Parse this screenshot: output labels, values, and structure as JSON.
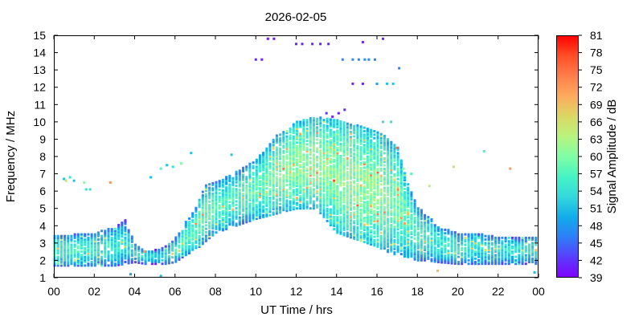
{
  "chart_data": {
    "type": "heatmap",
    "title": "2026-02-05",
    "xlabel": "UT Time / hrs",
    "ylabel": "Frequency / MHz",
    "colorbar_label": "Signal Amplitude / dB",
    "xlim": [
      0,
      24
    ],
    "ylim": [
      1,
      15
    ],
    "xticks": [
      "00",
      "02",
      "04",
      "06",
      "08",
      "10",
      "12",
      "14",
      "16",
      "18",
      "20",
      "22",
      "00"
    ],
    "xtick_values": [
      0,
      2,
      4,
      6,
      8,
      10,
      12,
      14,
      16,
      18,
      20,
      22,
      24
    ],
    "yticks": [
      "1",
      "2",
      "3",
      "4",
      "5",
      "6",
      "7",
      "8",
      "9",
      "10",
      "11",
      "12",
      "13",
      "14",
      "15"
    ],
    "ytick_values": [
      1,
      2,
      3,
      4,
      5,
      6,
      7,
      8,
      9,
      10,
      11,
      12,
      13,
      14,
      15
    ],
    "colorbar": {
      "range": [
        39,
        81
      ],
      "ticks": [
        "81",
        "78",
        "75",
        "72",
        "69",
        "66",
        "63",
        "60",
        "57",
        "54",
        "51",
        "48",
        "45",
        "42",
        "39"
      ],
      "tick_values": [
        81,
        78,
        75,
        72,
        69,
        66,
        63,
        60,
        57,
        54,
        51,
        48,
        45,
        42,
        39
      ],
      "colors": [
        "#8000ff",
        "#5a3cfe",
        "#2e7ef7",
        "#12aceb",
        "#34d8dc",
        "#46f4c4",
        "#80fea6",
        "#b9f37e",
        "#dcd763",
        "#fdaa5e",
        "#ff7e4a",
        "#ff4d26",
        "#ff0000"
      ]
    },
    "envelope": {
      "hours": [
        0,
        1,
        2,
        3,
        3.5,
        4,
        4.5,
        5,
        5.5,
        6,
        6.5,
        7,
        7.5,
        8,
        9,
        10,
        11,
        12,
        13,
        14,
        15,
        16,
        16.5,
        17,
        17.5,
        18,
        18.5,
        19,
        20,
        21,
        22,
        23,
        24
      ],
      "fmin_mhz": [
        1.7,
        1.7,
        1.7,
        1.7,
        1.8,
        1.9,
        1.8,
        1.8,
        1.8,
        1.9,
        2.3,
        2.6,
        3.1,
        3.6,
        4.0,
        4.4,
        4.7,
        5.0,
        5.0,
        3.6,
        3.2,
        2.8,
        2.5,
        2.3,
        2.2,
        2.0,
        2.0,
        1.9,
        1.8,
        1.8,
        1.8,
        1.8,
        1.8
      ],
      "fmax_mhz": [
        3.5,
        3.5,
        3.6,
        3.9,
        4.4,
        3.0,
        2.6,
        2.6,
        2.8,
        3.3,
        4.2,
        5.0,
        6.4,
        6.5,
        7.1,
        7.8,
        9.2,
        10.0,
        10.3,
        10.1,
        9.8,
        9.4,
        9.1,
        8.6,
        6.5,
        5.1,
        4.6,
        4.0,
        3.6,
        3.6,
        3.4,
        3.3,
        3.4
      ],
      "peak_db": [
        56,
        56,
        55,
        55,
        54,
        54,
        53,
        53,
        54,
        55,
        57,
        58,
        58,
        57,
        57,
        58,
        60,
        61,
        61,
        61,
        61,
        61,
        60,
        59,
        58,
        57,
        56,
        55,
        55,
        54,
        54,
        54,
        54
      ]
    },
    "isolated_points": [
      {
        "hour": 10.6,
        "mhz": 14.8,
        "db": 40
      },
      {
        "hour": 10.9,
        "mhz": 14.8,
        "db": 40
      },
      {
        "hour": 10.0,
        "mhz": 13.6,
        "db": 41
      },
      {
        "hour": 10.3,
        "mhz": 13.6,
        "db": 41
      },
      {
        "hour": 12.0,
        "mhz": 14.5,
        "db": 41
      },
      {
        "hour": 12.3,
        "mhz": 14.5,
        "db": 41
      },
      {
        "hour": 12.8,
        "mhz": 14.5,
        "db": 41
      },
      {
        "hour": 13.2,
        "mhz": 14.5,
        "db": 41
      },
      {
        "hour": 13.6,
        "mhz": 14.5,
        "db": 41
      },
      {
        "hour": 15.3,
        "mhz": 14.6,
        "db": 41
      },
      {
        "hour": 16.3,
        "mhz": 14.8,
        "db": 41
      },
      {
        "hour": 14.3,
        "mhz": 13.6,
        "db": 47
      },
      {
        "hour": 14.8,
        "mhz": 13.6,
        "db": 47
      },
      {
        "hour": 15.1,
        "mhz": 13.6,
        "db": 47
      },
      {
        "hour": 15.4,
        "mhz": 13.6,
        "db": 47
      },
      {
        "hour": 15.6,
        "mhz": 13.6,
        "db": 47
      },
      {
        "hour": 15.9,
        "mhz": 13.6,
        "db": 47
      },
      {
        "hour": 17.1,
        "mhz": 13.1,
        "db": 47
      },
      {
        "hour": 14.8,
        "mhz": 12.2,
        "db": 41
      },
      {
        "hour": 15.3,
        "mhz": 12.2,
        "db": 41
      },
      {
        "hour": 16.0,
        "mhz": 12.2,
        "db": 48
      },
      {
        "hour": 16.5,
        "mhz": 12.2,
        "db": 51
      },
      {
        "hour": 16.8,
        "mhz": 12.2,
        "db": 51
      },
      {
        "hour": 13.5,
        "mhz": 10.5,
        "db": 42
      },
      {
        "hour": 13.8,
        "mhz": 10.3,
        "db": 41
      },
      {
        "hour": 14.1,
        "mhz": 10.5,
        "db": 41
      },
      {
        "hour": 14.4,
        "mhz": 10.7,
        "db": 41
      },
      {
        "hour": 16.3,
        "mhz": 10.0,
        "db": 54
      },
      {
        "hour": 16.7,
        "mhz": 10.0,
        "db": 54
      },
      {
        "hour": 0.5,
        "mhz": 6.7,
        "db": 51
      },
      {
        "hour": 0.8,
        "mhz": 6.8,
        "db": 54
      },
      {
        "hour": 1.0,
        "mhz": 6.6,
        "db": 51
      },
      {
        "hour": 1.5,
        "mhz": 6.5,
        "db": 60
      },
      {
        "hour": 1.6,
        "mhz": 6.1,
        "db": 54
      },
      {
        "hour": 1.8,
        "mhz": 6.1,
        "db": 54
      },
      {
        "hour": 2.8,
        "mhz": 6.5,
        "db": 72
      },
      {
        "hour": 0.6,
        "mhz": 6.6,
        "db": 66
      },
      {
        "hour": 4.8,
        "mhz": 6.8,
        "db": 51
      },
      {
        "hour": 5.3,
        "mhz": 7.3,
        "db": 57
      },
      {
        "hour": 5.6,
        "mhz": 7.5,
        "db": 51
      },
      {
        "hour": 5.9,
        "mhz": 7.4,
        "db": 54
      },
      {
        "hour": 6.3,
        "mhz": 7.6,
        "db": 60
      },
      {
        "hour": 6.8,
        "mhz": 8.2,
        "db": 51
      },
      {
        "hour": 8.8,
        "mhz": 8.1,
        "db": 51
      },
      {
        "hour": 17.0,
        "mhz": 8.5,
        "db": 75
      },
      {
        "hour": 16.7,
        "mhz": 8.2,
        "db": 57
      },
      {
        "hour": 17.3,
        "mhz": 7.3,
        "db": 60
      },
      {
        "hour": 17.7,
        "mhz": 7.0,
        "db": 57
      },
      {
        "hour": 18.6,
        "mhz": 6.3,
        "db": 63
      },
      {
        "hour": 19.8,
        "mhz": 7.4,
        "db": 66
      },
      {
        "hour": 21.3,
        "mhz": 8.3,
        "db": 57
      },
      {
        "hour": 22.6,
        "mhz": 7.3,
        "db": 72
      },
      {
        "hour": 3.8,
        "mhz": 1.2,
        "db": 48
      },
      {
        "hour": 5.3,
        "mhz": 1.1,
        "db": 51
      },
      {
        "hour": 19.0,
        "mhz": 1.4,
        "db": 69
      },
      {
        "hour": 23.8,
        "mhz": 1.3,
        "db": 51
      },
      {
        "hour": 4.5,
        "mhz": 2.5,
        "db": 72
      }
    ]
  }
}
